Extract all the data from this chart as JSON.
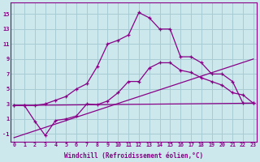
{
  "xlabel": "Windchill (Refroidissement éolien,°C)",
  "background_color": "#cce8ec",
  "grid_color": "#a8ccd4",
  "line_color": "#880088",
  "x_ticks": [
    0,
    1,
    2,
    3,
    4,
    5,
    6,
    7,
    8,
    9,
    10,
    11,
    12,
    13,
    14,
    15,
    16,
    17,
    18,
    19,
    20,
    21,
    22,
    23
  ],
  "y_ticks": [
    -1,
    1,
    3,
    5,
    7,
    9,
    11,
    13,
    15
  ],
  "ylim": [
    -2.0,
    16.5
  ],
  "xlim": [
    -0.3,
    23.3
  ],
  "ref_line1_x": [
    0,
    23
  ],
  "ref_line1_y": [
    2.8,
    3.1
  ],
  "ref_line2_x": [
    0,
    23
  ],
  "ref_line2_y": [
    -1.5,
    9.0
  ],
  "curve_top_x": [
    0,
    1,
    2,
    3,
    4,
    5,
    6,
    7,
    8,
    9,
    10,
    11,
    12,
    13,
    14,
    15,
    16,
    17,
    18,
    19,
    20,
    21,
    22,
    23
  ],
  "curve_top_y": [
    2.8,
    2.8,
    2.8,
    3.0,
    3.5,
    4.0,
    5.0,
    5.7,
    8.0,
    11.0,
    11.5,
    12.2,
    15.2,
    14.5,
    13.0,
    13.0,
    9.3,
    9.3,
    8.5,
    7.0,
    7.0,
    6.0,
    3.1,
    3.1
  ],
  "curve_bot_x": [
    0,
    1,
    2,
    3,
    4,
    5,
    6,
    7,
    8,
    9,
    10,
    11,
    12,
    13,
    14,
    15,
    16,
    17,
    18,
    19,
    20,
    21,
    22,
    23
  ],
  "curve_bot_y": [
    2.8,
    2.8,
    0.7,
    -1.2,
    0.8,
    1.0,
    1.4,
    3.0,
    2.9,
    3.4,
    4.5,
    6.0,
    6.0,
    7.8,
    8.5,
    8.5,
    7.5,
    7.2,
    6.5,
    6.0,
    5.5,
    4.5,
    4.2,
    3.1
  ]
}
